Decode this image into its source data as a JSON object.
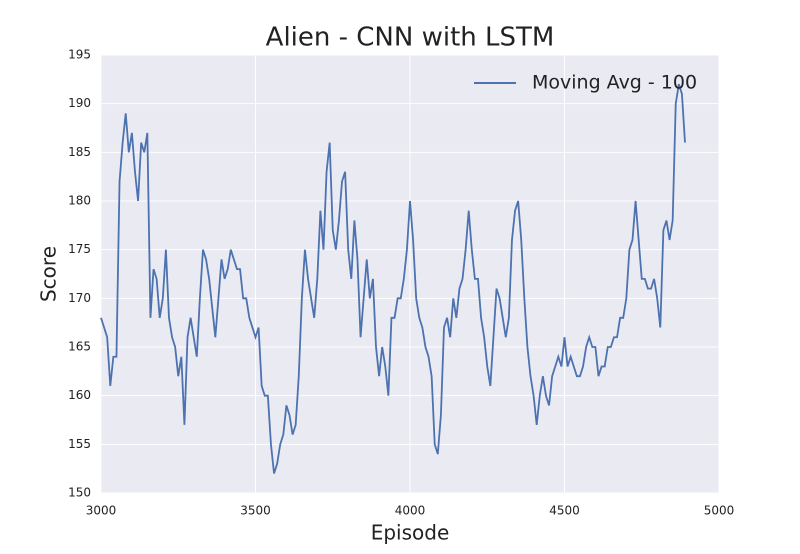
{
  "chart_data": {
    "type": "line",
    "title": "Alien - CNN with LSTM",
    "xlabel": "Episode",
    "ylabel": "Score",
    "x": [
      3000,
      3010,
      3020,
      3030,
      3040,
      3050,
      3060,
      3070,
      3080,
      3090,
      3100,
      3110,
      3120,
      3130,
      3140,
      3150,
      3160,
      3170,
      3180,
      3190,
      3200,
      3210,
      3220,
      3230,
      3240,
      3250,
      3260,
      3270,
      3280,
      3290,
      3300,
      3310,
      3320,
      3330,
      3340,
      3350,
      3360,
      3370,
      3380,
      3390,
      3400,
      3410,
      3420,
      3430,
      3440,
      3450,
      3460,
      3470,
      3480,
      3490,
      3500,
      3510,
      3520,
      3530,
      3540,
      3550,
      3560,
      3570,
      3580,
      3590,
      3600,
      3610,
      3620,
      3630,
      3640,
      3650,
      3660,
      3670,
      3680,
      3690,
      3700,
      3710,
      3720,
      3730,
      3740,
      3750,
      3760,
      3770,
      3780,
      3790,
      3800,
      3810,
      3820,
      3830,
      3840,
      3850,
      3860,
      3870,
      3880,
      3890,
      3900,
      3910,
      3920,
      3930,
      3940,
      3950,
      3960,
      3970,
      3980,
      3990,
      4000,
      4010,
      4020,
      4030,
      4040,
      4050,
      4060,
      4070,
      4080,
      4090,
      4100,
      4110,
      4120,
      4130,
      4140,
      4150,
      4160,
      4170,
      4180,
      4190,
      4200,
      4210,
      4220,
      4230,
      4240,
      4250,
      4260,
      4270,
      4280,
      4290,
      4300,
      4310,
      4320,
      4330,
      4340,
      4350,
      4360,
      4370,
      4380,
      4390,
      4400,
      4410,
      4420,
      4430,
      4440,
      4450,
      4460,
      4470,
      4480,
      4490,
      4500,
      4510,
      4520,
      4530,
      4540,
      4550,
      4560,
      4570,
      4580,
      4590,
      4600,
      4610,
      4620,
      4630,
      4640,
      4650,
      4660,
      4670,
      4680,
      4690,
      4700,
      4710,
      4720,
      4730,
      4740,
      4750,
      4760,
      4770,
      4780,
      4790,
      4800,
      4810,
      4820,
      4830,
      4840,
      4850,
      4860,
      4870,
      4880,
      4890
    ],
    "series": [
      {
        "name": "Moving Avg - 100",
        "color": "#4c72b0",
        "values": [
          168,
          167,
          166,
          161,
          164,
          164,
          182,
          186,
          189,
          185,
          187,
          183,
          180,
          186,
          185,
          187,
          168,
          173,
          172,
          168,
          170,
          175,
          168,
          166,
          165,
          162,
          164,
          157,
          166,
          168,
          166,
          164,
          170,
          175,
          174,
          172,
          169,
          166,
          170,
          174,
          172,
          173,
          175,
          174,
          173,
          173,
          170,
          170,
          168,
          167,
          166,
          167,
          161,
          160,
          160,
          155,
          152,
          153,
          155,
          156,
          159,
          158,
          156,
          157,
          162,
          170,
          175,
          172,
          170,
          168,
          172,
          179,
          175,
          183,
          186,
          177,
          175,
          178,
          182,
          183,
          175,
          172,
          178,
          174,
          166,
          170,
          174,
          170,
          172,
          165,
          162,
          165,
          163,
          160,
          168,
          168,
          170,
          170,
          172,
          175,
          180,
          176,
          170,
          168,
          167,
          165,
          164,
          162,
          155,
          154,
          158,
          167,
          168,
          166,
          170,
          168,
          171,
          172,
          175,
          179,
          175,
          172,
          172,
          168,
          166,
          163,
          161,
          166,
          171,
          170,
          168,
          166,
          168,
          176,
          179,
          180,
          176,
          170,
          165,
          162,
          160,
          157,
          160,
          162,
          160,
          159,
          162,
          163,
          164,
          163,
          166,
          163,
          164,
          163,
          162,
          162,
          163,
          165,
          166,
          165,
          165,
          162,
          163,
          163,
          165,
          165,
          166,
          166,
          168,
          168,
          170,
          175,
          176,
          180,
          176,
          172,
          172,
          171,
          171,
          172,
          170,
          167,
          177,
          178,
          176,
          178,
          190,
          192,
          191,
          186
        ]
      }
    ],
    "xlim": [
      3000,
      5000
    ],
    "xticks": [
      3000,
      3500,
      4000,
      4500,
      5000
    ],
    "ylim": [
      150,
      195
    ],
    "yticks": [
      150,
      155,
      160,
      165,
      170,
      175,
      180,
      185,
      190,
      195
    ],
    "grid": true,
    "legend": "upper right"
  }
}
